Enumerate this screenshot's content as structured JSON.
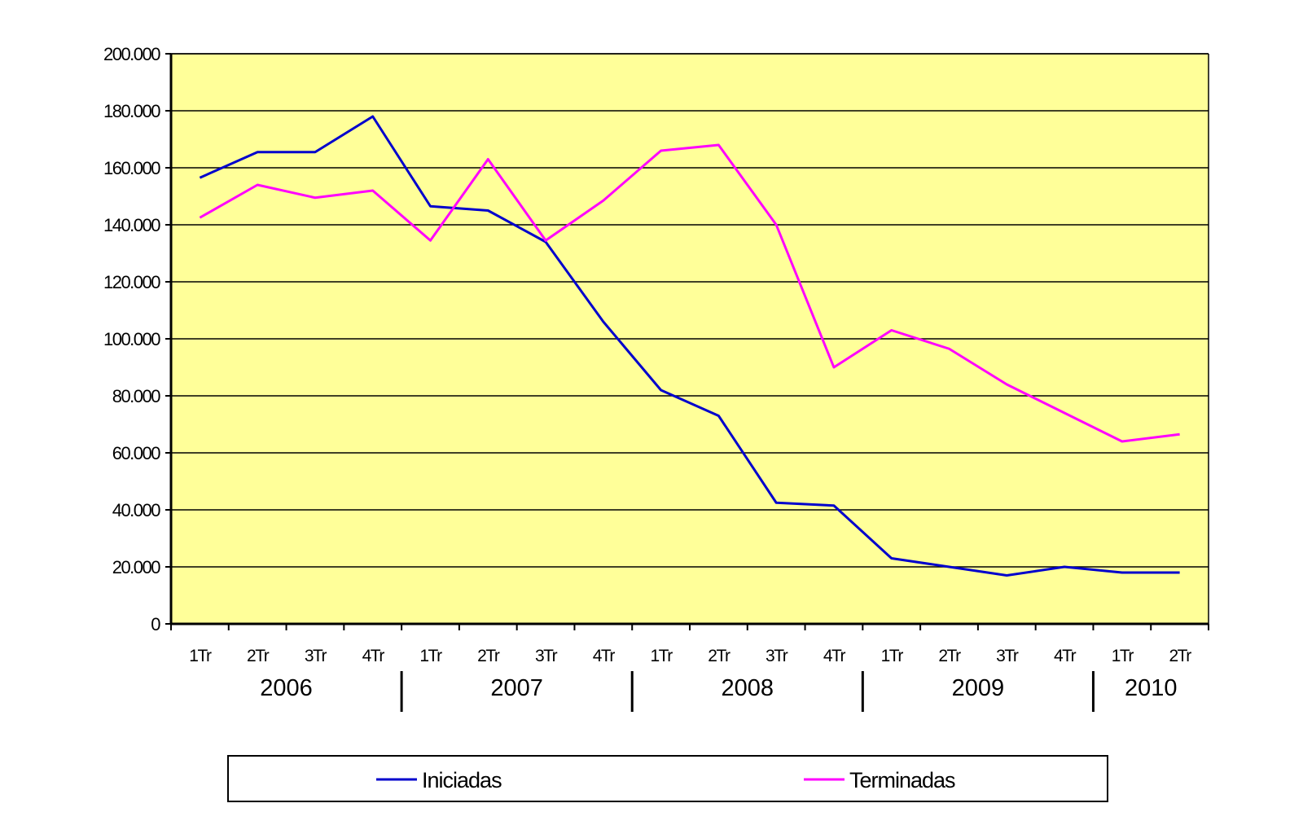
{
  "chart_data": {
    "type": "line",
    "title": "",
    "xlabel": "",
    "ylabel": "",
    "ylim": [
      0,
      200000
    ],
    "yticks": [
      0,
      20000,
      40000,
      60000,
      80000,
      100000,
      120000,
      140000,
      160000,
      180000,
      200000
    ],
    "ytick_labels": [
      "0",
      "20.000",
      "40.000",
      "60.000",
      "80.000",
      "100.000",
      "120.000",
      "140.000",
      "160.000",
      "180.000",
      "200.000"
    ],
    "categories": [
      "1Tr",
      "2Tr",
      "3Tr",
      "4Tr",
      "1Tr",
      "2Tr",
      "3Tr",
      "4Tr",
      "1Tr",
      "2Tr",
      "3Tr",
      "4Tr",
      "1Tr",
      "2Tr",
      "3Tr",
      "4Tr",
      "1Tr",
      "2Tr"
    ],
    "year_groups": [
      {
        "label": "2006",
        "count": 4
      },
      {
        "label": "2007",
        "count": 4
      },
      {
        "label": "2008",
        "count": 4
      },
      {
        "label": "2009",
        "count": 4
      },
      {
        "label": "2010",
        "count": 2
      }
    ],
    "grid": true,
    "plot_background": "#ffff99",
    "legend_position": "bottom",
    "series": [
      {
        "name": "Iniciadas",
        "color": "#0000cc",
        "values": [
          156500,
          165500,
          165500,
          178000,
          146500,
          145000,
          134000,
          106000,
          82000,
          73000,
          42500,
          41500,
          23000,
          20000,
          17000,
          20000,
          18000,
          18000
        ]
      },
      {
        "name": "Terminadas",
        "color": "#ff00ff",
        "values": [
          142500,
          154000,
          149500,
          152000,
          134500,
          163000,
          134500,
          148500,
          166000,
          168000,
          140000,
          90000,
          103000,
          96500,
          84000,
          74000,
          64000,
          66500
        ]
      }
    ]
  }
}
